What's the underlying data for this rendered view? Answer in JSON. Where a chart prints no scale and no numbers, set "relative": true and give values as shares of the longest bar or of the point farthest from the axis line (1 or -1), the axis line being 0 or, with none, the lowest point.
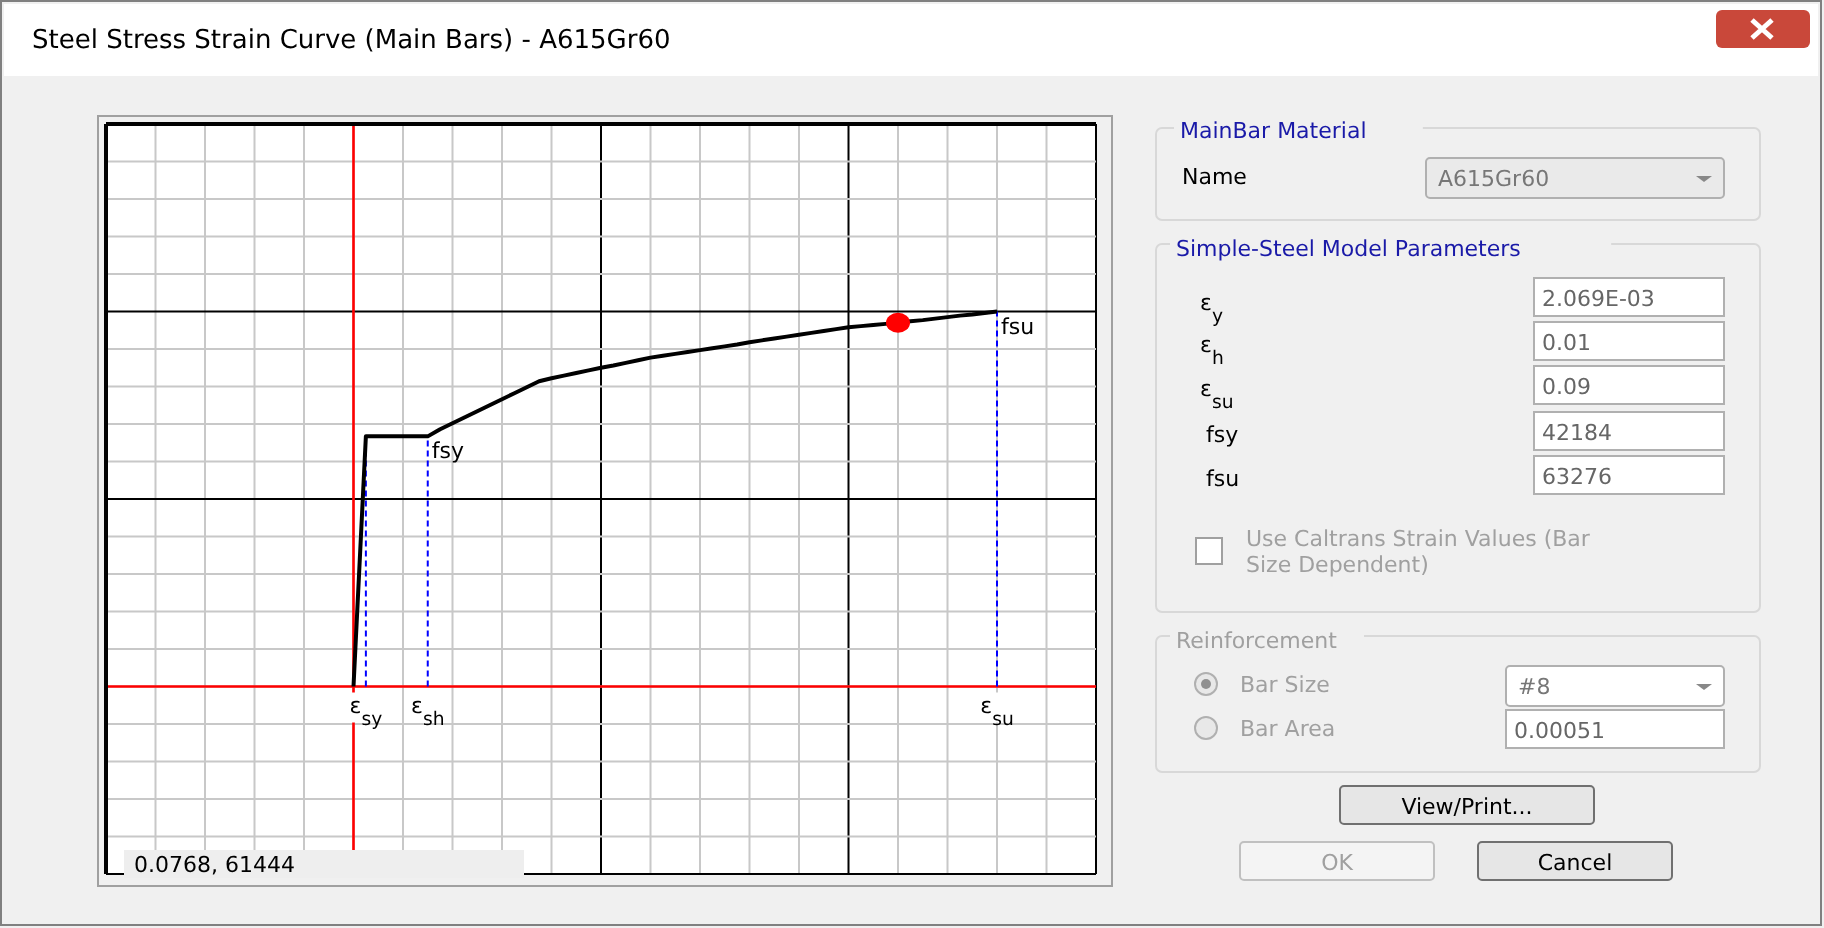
{
  "chart_data": [
    {
      "type": "line",
      "title": "Steel Stress Strain Curve (Main Bars) - A615Gr60",
      "relative": true,
      "grid": true,
      "line_style": "solid",
      "categories": [
        null,
        null,
        null,
        null,
        null,
        null,
        null,
        null,
        null,
        null,
        null,
        null,
        null,
        null,
        null,
        null,
        null,
        null,
        null,
        null,
        null,
        "ε$_{sy}$",
        null,
        null,
        null,
        null,
        "ε$_{sh}$",
        null,
        null,
        null,
        null,
        null,
        null,
        null,
        null,
        null,
        null,
        null,
        null,
        null,
        null,
        null,
        null,
        null,
        null,
        null,
        null,
        null,
        null,
        null,
        null,
        null,
        null,
        null,
        null,
        null,
        null,
        null,
        null,
        null,
        null,
        null,
        null,
        null,
        null,
        null,
        null,
        null,
        null,
        null,
        null,
        null,
        "ε$_{su}$",
        null,
        null,
        null,
        null,
        null,
        null,
        null,
        null
      ],
      "series": [
        {
          "color": "#000000",
          "values": [
            null,
            null,
            null,
            null,
            null,
            null,
            null,
            null,
            null,
            null,
            null,
            null,
            null,
            null,
            null,
            null,
            null,
            null,
            null,
            null,
            0,
            0.667,
            0.667,
            0.667,
            0.667,
            0.667,
            0.667,
            0.686,
            0.702,
            0.718,
            0.734,
            0.75,
            0.766,
            0.782,
            0.798,
            0.814,
            0.822,
            0.829,
            0.836,
            0.843,
            0.85,
            0.856,
            0.863,
            0.87,
            0.877,
            0.882,
            0.887,
            0.892,
            0.897,
            0.902,
            0.907,
            0.912,
            0.918,
            0.923,
            0.928,
            0.933,
            0.938,
            0.943,
            0.948,
            0.953,
            0.958,
            0.961,
            0.964,
            0.967,
            0.97,
            0.974,
            0.977,
            0.981,
            0.985,
            0.989,
            0.992,
            0.996,
            1,
            null,
            null,
            null,
            null,
            null,
            null,
            null,
            null
          ]
        }
      ],
      "annotations": [
        {
          "text": "fsy",
          "x": "ε$_{sh}$",
          "y": 0.667
        },
        {
          "text": "fsu",
          "x": "ε$_{su}$",
          "y": 1
        },
        "0.0768,  61444"
      ]
    },
    {
      "type": "other",
      "annotations": [
        "MainBar Material",
        "Name",
        "A615Gr60",
        "Simple-Steel Model Parameters",
        "ε$_{y}$",
        "2.069E-03",
        "ε$_{h}$",
        "0.01",
        "ε$_{su}$",
        "0.09",
        "fsy",
        "42184",
        "fsu",
        "63276",
        "Use Caltrans Strain Values      (Bar",
        "Size Dependent)",
        "Reinforcement",
        "Bar Size",
        "#8",
        "Bar Area",
        "0.00051",
        "View/Print...",
        "OK",
        "Cancel"
      ]
    }
  ]
}
